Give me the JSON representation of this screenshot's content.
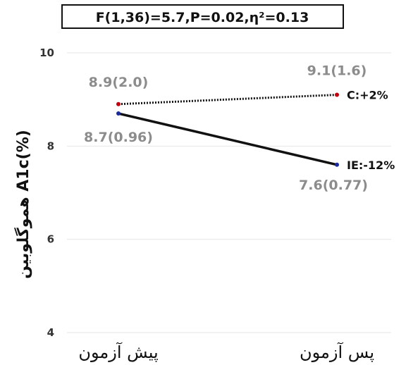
{
  "chart_data": {
    "type": "line",
    "title": "F(1,36)=5.7,P=0.02,η²=0.13",
    "ylabel": "هموگلوبین A1c(%)",
    "xlabel": "",
    "categories": [
      "پیش آزمون",
      "پس آزمون"
    ],
    "ylim": [
      4,
      10
    ],
    "yticks": [
      "10",
      "8",
      "6",
      "4"
    ],
    "ytick_values": [
      10,
      8,
      6,
      4
    ],
    "grid": true,
    "series": [
      {
        "name": "C:+2%",
        "values": [
          8.9,
          9.1
        ],
        "labels": [
          "8.9(2.0)",
          "9.1(1.6)"
        ],
        "color": "#c0000c",
        "line_style": "dotted"
      },
      {
        "name": "IE:-12%",
        "values": [
          8.7,
          7.6
        ],
        "labels": [
          "8.7(0.96)",
          "7.6(0.77)"
        ],
        "color": "#1a2a9c",
        "line_style": "solid"
      }
    ]
  }
}
